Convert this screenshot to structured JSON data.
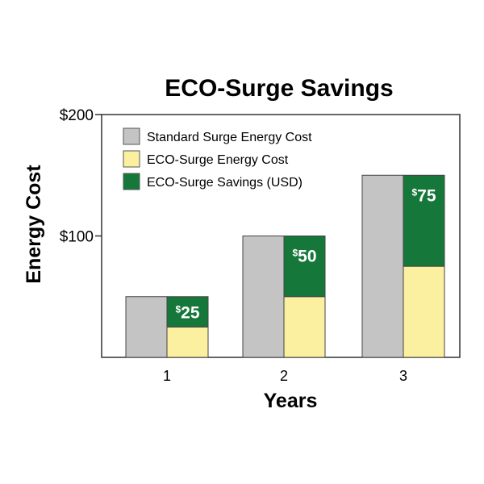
{
  "chart_data": {
    "type": "bar",
    "title": "ECO-Surge Savings",
    "xlabel": "Years",
    "ylabel": "Energy Cost",
    "categories": [
      "1",
      "2",
      "3"
    ],
    "yticks": [
      "$100",
      "$200"
    ],
    "ylim": [
      0,
      200
    ],
    "grid": false,
    "legend_position": "top-left",
    "series": [
      {
        "name": "Standard Surge Energy Cost",
        "values": [
          50,
          100,
          150
        ],
        "color": "#c4c4c4"
      },
      {
        "name": "ECO-Surge Energy Cost",
        "values": [
          25,
          50,
          75
        ],
        "color": "#fbf0a0"
      },
      {
        "name": "ECO-Surge Savings (USD)",
        "values": [
          25,
          50,
          75
        ],
        "color": "#16773a"
      }
    ],
    "data_labels": [
      {
        "currency": "$",
        "amount": "25"
      },
      {
        "currency": "$",
        "amount": "50"
      },
      {
        "currency": "$",
        "amount": "75"
      }
    ]
  }
}
